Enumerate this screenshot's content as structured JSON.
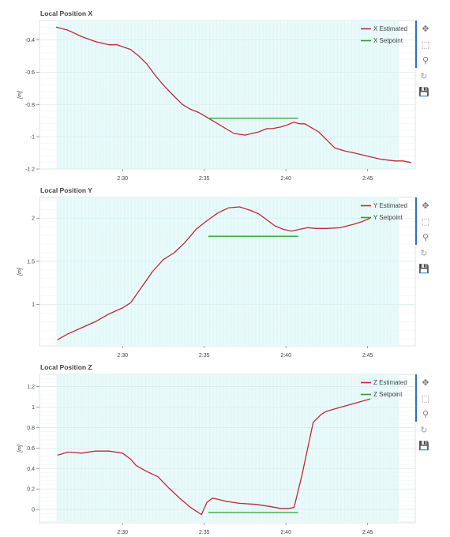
{
  "toolbar": {
    "icons": [
      "pan-icon",
      "box-zoom-icon",
      "wheel-zoom-icon",
      "reset-icon",
      "save-icon"
    ],
    "glyphs": [
      "✥",
      "⬚",
      "⚲",
      "↻",
      "💾"
    ]
  },
  "colors": {
    "estimated": "#c0283a",
    "setpoint": "#2ca02c",
    "plot_bg": "#e8fafa",
    "grid": "#dfeaea"
  },
  "chart_data": [
    {
      "type": "line",
      "title": "Local Position X",
      "ylabel": "[m]",
      "xlim": [
        145,
        1525
      ],
      "ylim": [
        -1.2,
        -0.28
      ],
      "xticks": [
        {
          "v": 450,
          "label": "2:30"
        },
        {
          "v": 750,
          "label": "2:35"
        },
        {
          "v": 1050,
          "label": "2:40"
        },
        {
          "v": 1350,
          "label": "2:45"
        }
      ],
      "yticks": [
        {
          "v": -0.4,
          "label": "-0.4"
        },
        {
          "v": -0.6,
          "label": "-0.6"
        },
        {
          "v": -0.8,
          "label": "-0.8"
        },
        {
          "v": -1,
          "label": "-1"
        },
        {
          "v": -1.2,
          "label": "-1.2"
        }
      ],
      "series": [
        {
          "name": "X Estimated",
          "color": "#c0283a",
          "x": [
            206,
            250,
            300,
            350,
            400,
            430,
            480,
            510,
            540,
            570,
            600,
            640,
            670,
            700,
            730,
            760,
            790,
            820,
            840,
            860,
            900,
            950,
            980,
            1000,
            1030,
            1050,
            1080,
            1100,
            1120,
            1140,
            1170,
            1200,
            1230,
            1250,
            1270,
            1300,
            1350,
            1400,
            1450,
            1480,
            1510
          ],
          "y": [
            -0.32,
            -0.34,
            -0.38,
            -0.41,
            -0.43,
            -0.43,
            -0.46,
            -0.5,
            -0.55,
            -0.62,
            -0.68,
            -0.75,
            -0.8,
            -0.83,
            -0.85,
            -0.88,
            -0.91,
            -0.94,
            -0.96,
            -0.98,
            -0.99,
            -0.97,
            -0.95,
            -0.95,
            -0.94,
            -0.93,
            -0.91,
            -0.92,
            -0.92,
            -0.94,
            -0.97,
            -1.02,
            -1.07,
            -1.08,
            -1.09,
            -1.1,
            -1.12,
            -1.14,
            -1.15,
            -1.15,
            -1.16
          ]
        },
        {
          "name": "X Setpoint",
          "color": "#2ca02c",
          "x": [
            765,
            1095
          ],
          "y": [
            -0.885,
            -0.885
          ]
        }
      ]
    },
    {
      "type": "line",
      "title": "Local Position Y",
      "ylabel": "[m]",
      "xlim": [
        145,
        1525
      ],
      "ylim": [
        0.52,
        2.24
      ],
      "xticks": [
        {
          "v": 450,
          "label": "2:30"
        },
        {
          "v": 750,
          "label": "2:35"
        },
        {
          "v": 1050,
          "label": "2:40"
        },
        {
          "v": 1350,
          "label": "2:45"
        }
      ],
      "yticks": [
        {
          "v": 1,
          "label": "1"
        },
        {
          "v": 1.5,
          "label": "1.5"
        },
        {
          "v": 2,
          "label": "2"
        }
      ],
      "series": [
        {
          "name": "Y Estimated",
          "color": "#c0283a",
          "x": [
            211,
            250,
            300,
            350,
            400,
            450,
            480,
            520,
            560,
            600,
            640,
            680,
            720,
            760,
            800,
            840,
            880,
            920,
            950,
            980,
            1010,
            1040,
            1070,
            1100,
            1130,
            1160,
            1200,
            1250,
            1300,
            1330,
            1360
          ],
          "y": [
            0.59,
            0.66,
            0.73,
            0.8,
            0.89,
            0.96,
            1.02,
            1.2,
            1.38,
            1.52,
            1.6,
            1.72,
            1.87,
            1.97,
            2.06,
            2.12,
            2.13,
            2.09,
            2.05,
            1.98,
            1.91,
            1.87,
            1.85,
            1.87,
            1.89,
            1.88,
            1.88,
            1.89,
            1.93,
            1.96,
            2.0
          ]
        },
        {
          "name": "Y Setpoint",
          "color": "#2ca02c",
          "x": [
            765,
            1095
          ],
          "y": [
            1.79,
            1.79
          ]
        }
      ]
    },
    {
      "type": "line",
      "title": "Local Position Z",
      "ylabel": "[m]",
      "xlim": [
        145,
        1525
      ],
      "ylim": [
        -0.13,
        1.32
      ],
      "xticks": [
        {
          "v": 450,
          "label": "2:30"
        },
        {
          "v": 750,
          "label": "2:35"
        },
        {
          "v": 1050,
          "label": "2:40"
        },
        {
          "v": 1350,
          "label": "2:45"
        }
      ],
      "yticks": [
        {
          "v": 0,
          "label": "0"
        },
        {
          "v": 0.2,
          "label": "0.2"
        },
        {
          "v": 0.4,
          "label": "0.4"
        },
        {
          "v": 0.6,
          "label": "0.6"
        },
        {
          "v": 0.8,
          "label": "0.8"
        },
        {
          "v": 1,
          "label": "1"
        },
        {
          "v": 1.2,
          "label": "1.2"
        }
      ],
      "series": [
        {
          "name": "Z Estimated",
          "color": "#c0283a",
          "x": [
            211,
            250,
            300,
            350,
            400,
            450,
            480,
            500,
            540,
            580,
            620,
            660,
            700,
            740,
            760,
            780,
            800,
            830,
            880,
            940,
            990,
            1030,
            1060,
            1080,
            1110,
            1150,
            1180,
            1200,
            1240,
            1280,
            1320,
            1360
          ],
          "y": [
            0.53,
            0.56,
            0.55,
            0.57,
            0.57,
            0.55,
            0.49,
            0.43,
            0.37,
            0.32,
            0.21,
            0.11,
            0.02,
            -0.05,
            0.07,
            0.11,
            0.1,
            0.08,
            0.06,
            0.05,
            0.03,
            0.01,
            0.01,
            0.02,
            0.35,
            0.85,
            0.93,
            0.96,
            0.99,
            1.02,
            1.05,
            1.08
          ]
        },
        {
          "name": "Z Setpoint",
          "color": "#2ca02c",
          "x": [
            765,
            1095
          ],
          "y": [
            -0.03,
            -0.03
          ]
        }
      ]
    }
  ]
}
